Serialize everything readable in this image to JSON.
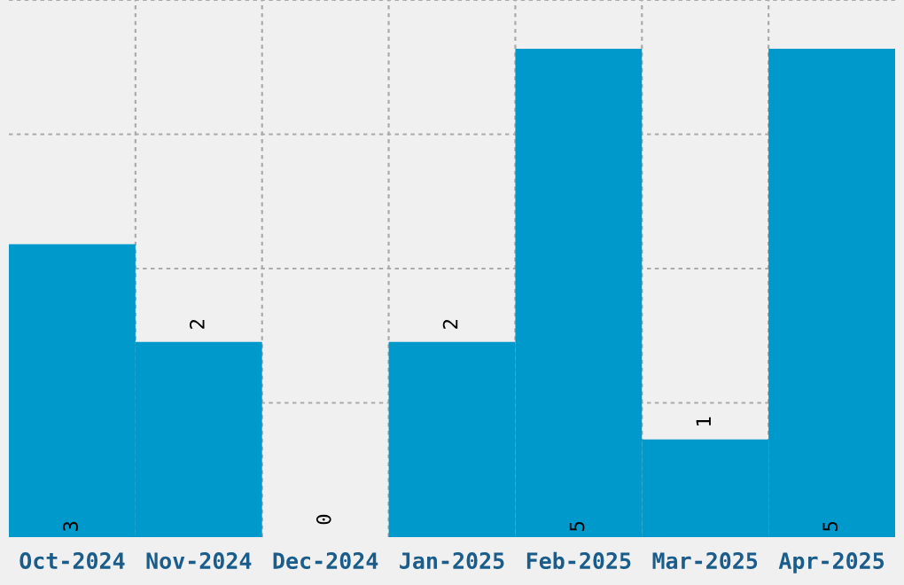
{
  "chart_data": {
    "type": "bar",
    "categories": [
      "Oct-2024",
      "Nov-2024",
      "Dec-2024",
      "Jan-2025",
      "Feb-2025",
      "Mar-2025",
      "Apr-2025"
    ],
    "values": [
      3,
      2,
      0,
      2,
      5,
      1,
      5
    ],
    "color": "#0099cc",
    "ylim": [
      0,
      5.5
    ],
    "yticks": [
      {
        "value": 1.375,
        "label": null
      },
      {
        "value": 2.75,
        "label": null
      },
      {
        "value": 4.125,
        "label": null
      },
      {
        "value": 5.5,
        "label": null
      }
    ],
    "tick_labels": "x",
    "grid": true,
    "data_labels": true
  }
}
